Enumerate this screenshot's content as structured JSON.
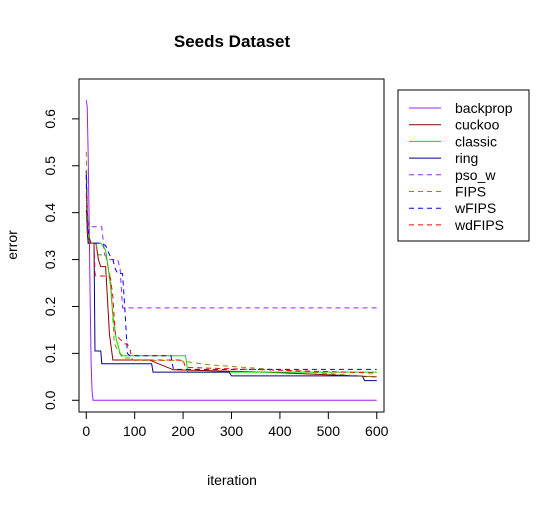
{
  "chart_data": {
    "type": "line",
    "title": "Seeds Dataset",
    "xlabel": "iteration",
    "ylabel": "error",
    "xlim": [
      -15,
      615
    ],
    "ylim": [
      -0.025,
      0.685
    ],
    "xticks": [
      0,
      100,
      200,
      300,
      400,
      500,
      600
    ],
    "yticks": [
      0.0,
      0.1,
      0.2,
      0.3,
      0.4,
      0.5,
      0.6
    ],
    "xtick_labels": [
      "0",
      "100",
      "200",
      "300",
      "400",
      "500",
      "600"
    ],
    "ytick_labels": [
      "0.0",
      "0.1",
      "0.2",
      "0.3",
      "0.4",
      "0.5",
      "0.6"
    ],
    "grid": false,
    "legend_position": "right",
    "series": [
      {
        "name": "backprop",
        "color": "#a020f0",
        "dash": "solid",
        "x": [
          0,
          2,
          4,
          6,
          8,
          10,
          12,
          14,
          600
        ],
        "y": [
          0.64,
          0.625,
          0.52,
          0.38,
          0.22,
          0.08,
          0.02,
          0.0,
          0.0
        ]
      },
      {
        "name": "cuckoo",
        "color": "#8b0000",
        "dash": "solid",
        "x": [
          0,
          2,
          4,
          12,
          20,
          25,
          30,
          40,
          48,
          55,
          75,
          130,
          180,
          370,
          600
        ],
        "y": [
          0.405,
          0.38,
          0.335,
          0.335,
          0.335,
          0.3,
          0.285,
          0.285,
          0.14,
          0.086,
          0.086,
          0.086,
          0.065,
          0.06,
          0.05
        ]
      },
      {
        "name": "classic",
        "color": "#00e000",
        "dash": "solid",
        "x": [
          0,
          4,
          8,
          18,
          30,
          40,
          45,
          50,
          55,
          62,
          70,
          75,
          80,
          95,
          205,
          210,
          290,
          600
        ],
        "y": [
          0.395,
          0.35,
          0.335,
          0.335,
          0.335,
          0.32,
          0.285,
          0.245,
          0.18,
          0.13,
          0.1,
          0.095,
          0.095,
          0.095,
          0.095,
          0.06,
          0.06,
          0.06
        ]
      },
      {
        "name": "ring",
        "color": "#00008b",
        "dash": "solid",
        "x": [
          0,
          2,
          4,
          16,
          18,
          30,
          32,
          55,
          58,
          135,
          138,
          295,
          300,
          570,
          575,
          600
        ],
        "y": [
          0.49,
          0.36,
          0.335,
          0.335,
          0.105,
          0.105,
          0.078,
          0.078,
          0.078,
          0.078,
          0.06,
          0.06,
          0.052,
          0.052,
          0.042,
          0.042
        ]
      },
      {
        "name": "pso_w",
        "color": "#a020f0",
        "dash": "dashed",
        "x": [
          0,
          3,
          6,
          12,
          18,
          32,
          38,
          48,
          55,
          65,
          70,
          75,
          600
        ],
        "y": [
          0.46,
          0.38,
          0.37,
          0.37,
          0.37,
          0.37,
          0.31,
          0.3,
          0.3,
          0.3,
          0.28,
          0.197,
          0.197
        ]
      },
      {
        "name": "FIPS",
        "color": "#8b8b00",
        "dash": "dashed",
        "x": [
          0,
          3,
          8,
          20,
          25,
          40,
          50,
          58,
          75,
          90,
          100,
          190,
          250,
          590,
          600
        ],
        "y": [
          0.53,
          0.39,
          0.335,
          0.335,
          0.31,
          0.31,
          0.26,
          0.12,
          0.09,
          0.09,
          0.085,
          0.085,
          0.076,
          0.05,
          0.05
        ]
      },
      {
        "name": "wFIPS",
        "color": "#0000ff",
        "dash": "dashed",
        "x": [
          0,
          2,
          5,
          10,
          20,
          30,
          40,
          48,
          55,
          60,
          65,
          75,
          80,
          85,
          90,
          100,
          175,
          180,
          590,
          600
        ],
        "y": [
          0.48,
          0.4,
          0.35,
          0.335,
          0.335,
          0.335,
          0.33,
          0.31,
          0.3,
          0.28,
          0.27,
          0.27,
          0.19,
          0.1,
          0.095,
          0.095,
          0.095,
          0.066,
          0.066,
          0.066
        ]
      },
      {
        "name": "wdFIPS",
        "color": "#ff0000",
        "dash": "dashed",
        "x": [
          0,
          3,
          10,
          16,
          18,
          20,
          30,
          45,
          50,
          55,
          60,
          70,
          80,
          85,
          90,
          95,
          200,
          205,
          370,
          600
        ],
        "y": [
          0.44,
          0.35,
          0.335,
          0.335,
          0.27,
          0.265,
          0.265,
          0.265,
          0.26,
          0.22,
          0.14,
          0.13,
          0.12,
          0.12,
          0.11,
          0.086,
          0.086,
          0.07,
          0.065,
          0.058
        ]
      }
    ]
  }
}
